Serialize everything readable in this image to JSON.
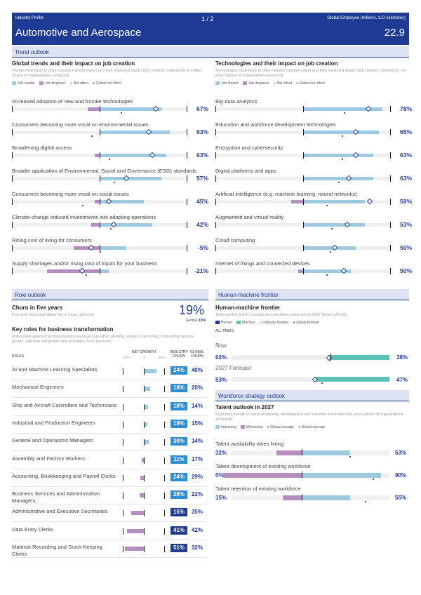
{
  "header": {
    "profile": "Industry Profile",
    "page": "1 / 2",
    "right_label": "Global Employee (millions, ILO estimates)",
    "title": "Automotive and Aerospace",
    "value": "22.9"
  },
  "trend": {
    "section": "Trend outlook",
    "left_title": "Global trends and their impact on job creation",
    "left_sub": "Trends most likely to drive industry transformation and their expected impact (job creation, ordered by net effect (share of organizations surveyed)",
    "right_title": "Technologies and their impact on job creation",
    "right_sub": "Technologies most likely to drive industry transformation and their expected impact (job creation, ordered by net effect (share of organizations surveyed)",
    "legend": {
      "creator": "Job creator",
      "displacer": "Job displacer",
      "net": "Net effect",
      "global": "Global net effect"
    },
    "left_rows": [
      {
        "label": "Increased adoption of new and frontier technologies",
        "value": "67%",
        "disp": 0.07,
        "crea": 0.35,
        "dia": 0.82,
        "dot": 0.62
      },
      {
        "label": "Consumers becoming more vocal on environmental issues",
        "value": "63%",
        "disp": 0.0,
        "crea": 0.4,
        "dia": 0.78,
        "dot": 0.45
      },
      {
        "label": "Broadening digital access",
        "value": "63%",
        "disp": 0.03,
        "crea": 0.38,
        "dia": 0.8,
        "dot": 0.55
      },
      {
        "label": "Broader application of Environmental, Social and Governance (ESG) standards",
        "value": "57%",
        "disp": 0.0,
        "crea": 0.35,
        "dia": 0.65,
        "dot": 0.58
      },
      {
        "label": "Consumers becoming more vocal on social issues",
        "value": "45%",
        "disp": 0.03,
        "crea": 0.25,
        "dia": 0.55,
        "dot": 0.4
      },
      {
        "label": "Climate-change induced investments into adapting operations",
        "value": "42%",
        "disp": 0.05,
        "crea": 0.3,
        "dia": 0.58,
        "dot": 0.56
      },
      {
        "label": "Rising cost of living for consumers",
        "value": "-5%",
        "disp": 0.15,
        "crea": 0.15,
        "dia": 0.45,
        "dot": 0.5
      },
      {
        "label": "Supply shortages and/or rising cost of inputs for your business",
        "value": "-21%",
        "disp": 0.3,
        "crea": 0.05,
        "dia": 0.4,
        "dot": 0.42
      }
    ],
    "right_rows": [
      {
        "label": "Big-data analytics",
        "value": "78%",
        "disp": 0.0,
        "crea": 0.45,
        "dia": 0.87,
        "dot": 0.73
      },
      {
        "label": "Education and workforce development technologies",
        "value": "65%",
        "disp": 0.0,
        "crea": 0.43,
        "dia": 0.8,
        "dot": 0.72
      },
      {
        "label": "Encryption and cybersecurity",
        "value": "63%",
        "disp": 0.0,
        "crea": 0.4,
        "dia": 0.8,
        "dot": 0.72
      },
      {
        "label": "Digital platforms and apps",
        "value": "63%",
        "disp": 0.0,
        "crea": 0.4,
        "dia": 0.76,
        "dot": 0.7
      },
      {
        "label": "Artificial intelligence (e.g. machine learning, neural networks)",
        "value": "59%",
        "disp": 0.07,
        "crea": 0.35,
        "dia": 0.88,
        "dot": 0.63
      },
      {
        "label": "Augmented and virtual reality",
        "value": "53%",
        "disp": 0.0,
        "crea": 0.35,
        "dia": 0.75,
        "dot": 0.66
      },
      {
        "label": "Cloud computing",
        "value": "50%",
        "disp": 0.0,
        "crea": 0.3,
        "dia": 0.68,
        "dot": 0.65
      },
      {
        "label": "Internet of things and connected devices",
        "value": "50%",
        "disp": 0.03,
        "crea": 0.27,
        "dia": 0.73,
        "dot": 0.63
      }
    ]
  },
  "role": {
    "section": "Role outlook",
    "churn_title": "Churn in five years",
    "churn_sub": "Five-year structural labour-force churn (percent)",
    "churn_value": "19%",
    "global_label": "Global",
    "global_value": "23%",
    "key_title": "Key roles for business transformation",
    "key_sub": "Roles most selected by organizations surveyed (as either growing, stable or declining), ordered by net role growth, and their net growth and structural churn (percent)",
    "col_roles": "ROLES",
    "col_net": "NET GROWTH",
    "col_ind": "INDUSTRY CHURN",
    "col_glob": "GLOBAL CHURN",
    "scale": [
      "-50%",
      "0",
      "50%"
    ],
    "rows": [
      {
        "role": "AI and Machine Learning Specialists",
        "churn": "24%",
        "global": "40%",
        "net": 0.3,
        "color": "#2c8fd6"
      },
      {
        "role": "Mechanical Engineers",
        "churn": "18%",
        "global": "20%",
        "net": 0.15,
        "color": "#2c8fd6"
      },
      {
        "role": "Ship and Aircraft Controllers and Technicians",
        "churn": "18%",
        "global": "14%",
        "net": 0.1,
        "color": "#2c8fd6"
      },
      {
        "role": "Industrial and Production Engineers",
        "churn": "19%",
        "global": "15%",
        "net": 0.08,
        "color": "#2c8fd6"
      },
      {
        "role": "General and Operations Managers",
        "churn": "30%",
        "global": "14%",
        "net": 0.12,
        "color": "#2c8fd6"
      },
      {
        "role": "Assembly and Factory Workers",
        "churn": "11%",
        "global": "17%",
        "net": -0.05,
        "color": "#2c8fd6"
      },
      {
        "role": "Accounting, Bookkeeping and Payroll Clerks",
        "churn": "24%",
        "global": "29%",
        "net": -0.08,
        "color": "#2c8fd6"
      },
      {
        "role": "Business Services and Administration Managers",
        "churn": "28%",
        "global": "22%",
        "net": -0.1,
        "color": "#2c8fd6"
      },
      {
        "role": "Administrative and Executive Secretaries",
        "churn": "15%",
        "global": "35%",
        "net": -0.3,
        "color": "#1f3a93"
      },
      {
        "role": "Data Entry Clerks",
        "churn": "41%",
        "global": "42%",
        "net": -0.4,
        "color": "#1f3a93"
      },
      {
        "role": "Material-Recording and Stock-Keeping Clerks",
        "churn": "51%",
        "global": "32%",
        "net": -0.45,
        "color": "#1f3a93"
      }
    ]
  },
  "hm": {
    "section": "Human-machine frontier",
    "title": "Human-machine frontier",
    "sub": "Tasks performed by humans and machines today and in 2027 (share of total)",
    "legend": {
      "human": "Human",
      "machine": "Machine",
      "industry": "Industry Frontier",
      "global": "Global Frontier"
    },
    "all_tasks": "ALL TASKS",
    "now": "Now",
    "now_h": "62%",
    "now_m": "38%",
    "fc": "2027 Forecast",
    "fc_h": "53%",
    "fc_m": "47%"
  },
  "ws": {
    "section": "Workforce strategy outlook",
    "title": "Talent outlook in 2027",
    "sub": "Expected change in talent availability, development and retention in the next five years (share of organizations surveyed)",
    "legend": {
      "imp": "Improving",
      "wor": "Worsening",
      "ga": "Global average",
      "gav": "Global average"
    },
    "rows": [
      {
        "label": "Talent availability when hiring",
        "l": "32%",
        "r": "53%"
      },
      {
        "label": "Talent development of existing workforce",
        "l": "0%",
        "r": "90%"
      },
      {
        "label": "Talent retention of existing workforce",
        "l": "15%",
        "r": "55%"
      }
    ]
  },
  "colors": {
    "primary": "#1f3a93",
    "creator": "#9ecae1",
    "displacer": "#b48fc0",
    "teal": "#5cc2b4"
  }
}
